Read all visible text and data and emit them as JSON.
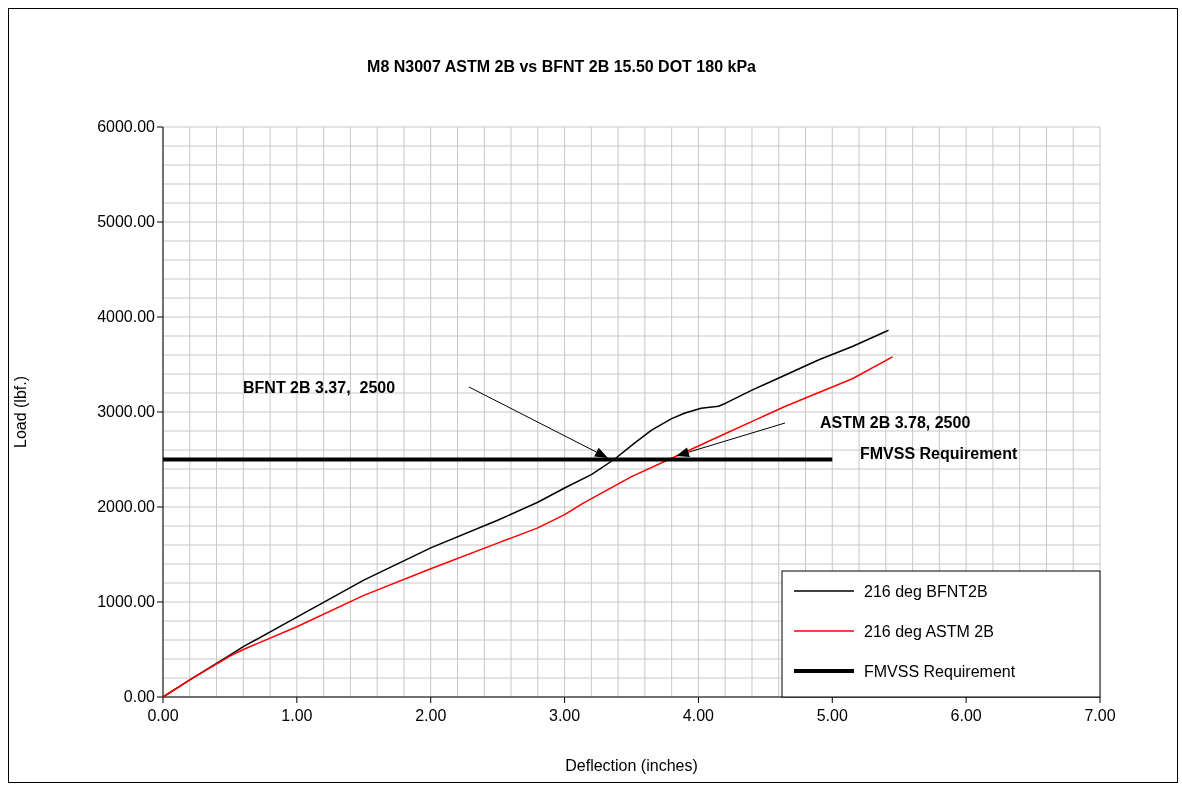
{
  "chart_data": {
    "type": "line",
    "title": "M8 N3007 ASTM 2B vs BFNT 2B 15.50 DOT 180 kPa",
    "xlabel": "Deflection (inches)",
    "ylabel": "Load (lbf.)",
    "xlim": [
      0,
      7
    ],
    "ylim": [
      0,
      6000
    ],
    "xticks": [
      {
        "value": 0,
        "label": "0.00"
      },
      {
        "value": 0.2,
        "label": null
      },
      {
        "value": 0.4,
        "label": null
      },
      {
        "value": 0.6,
        "label": null
      },
      {
        "value": 0.8,
        "label": null
      },
      {
        "value": 1,
        "label": "1.00"
      },
      {
        "value": 1.2,
        "label": null
      },
      {
        "value": 1.4,
        "label": null
      },
      {
        "value": 1.6,
        "label": null
      },
      {
        "value": 1.8,
        "label": null
      },
      {
        "value": 2,
        "label": "2.00"
      },
      {
        "value": 2.2,
        "label": null
      },
      {
        "value": 2.4,
        "label": null
      },
      {
        "value": 2.6,
        "label": null
      },
      {
        "value": 2.8,
        "label": null
      },
      {
        "value": 3,
        "label": "3.00"
      },
      {
        "value": 3.2,
        "label": null
      },
      {
        "value": 3.4,
        "label": null
      },
      {
        "value": 3.6,
        "label": null
      },
      {
        "value": 3.8,
        "label": null
      },
      {
        "value": 4,
        "label": "4.00"
      },
      {
        "value": 4.2,
        "label": null
      },
      {
        "value": 4.4,
        "label": null
      },
      {
        "value": 4.6,
        "label": null
      },
      {
        "value": 4.8,
        "label": null
      },
      {
        "value": 5,
        "label": "5.00"
      },
      {
        "value": 5.2,
        "label": null
      },
      {
        "value": 5.4,
        "label": null
      },
      {
        "value": 5.6,
        "label": null
      },
      {
        "value": 5.8,
        "label": null
      },
      {
        "value": 6,
        "label": "6.00"
      },
      {
        "value": 6.2,
        "label": null
      },
      {
        "value": 6.4,
        "label": null
      },
      {
        "value": 6.6,
        "label": null
      },
      {
        "value": 6.8,
        "label": null
      },
      {
        "value": 7,
        "label": "7.00"
      }
    ],
    "yticks": [
      {
        "value": 0,
        "label": "0.00"
      },
      {
        "value": 200,
        "label": null
      },
      {
        "value": 400,
        "label": null
      },
      {
        "value": 600,
        "label": null
      },
      {
        "value": 800,
        "label": null
      },
      {
        "value": 1000,
        "label": "1000.00"
      },
      {
        "value": 1200,
        "label": null
      },
      {
        "value": 1400,
        "label": null
      },
      {
        "value": 1600,
        "label": null
      },
      {
        "value": 1800,
        "label": null
      },
      {
        "value": 2000,
        "label": "2000.00"
      },
      {
        "value": 2200,
        "label": null
      },
      {
        "value": 2400,
        "label": null
      },
      {
        "value": 2600,
        "label": null
      },
      {
        "value": 2800,
        "label": null
      },
      {
        "value": 3000,
        "label": "3000.00"
      },
      {
        "value": 3200,
        "label": null
      },
      {
        "value": 3400,
        "label": null
      },
      {
        "value": 3600,
        "label": null
      },
      {
        "value": 3800,
        "label": null
      },
      {
        "value": 4000,
        "label": "4000.00"
      },
      {
        "value": 4200,
        "label": null
      },
      {
        "value": 4400,
        "label": null
      },
      {
        "value": 4600,
        "label": null
      },
      {
        "value": 4800,
        "label": null
      },
      {
        "value": 5000,
        "label": "5000.00"
      },
      {
        "value": 5200,
        "label": null
      },
      {
        "value": 5400,
        "label": null
      },
      {
        "value": 5600,
        "label": null
      },
      {
        "value": 5800,
        "label": null
      },
      {
        "value": 6000,
        "label": "6000.00"
      }
    ],
    "grid": true,
    "legend": "bottom right",
    "marker": "none",
    "line_style": "solid",
    "series": [
      {
        "name": "216 deg BFNT2B",
        "color": "#000000",
        "x": [
          0,
          0.2,
          0.5,
          0.6,
          1,
          1.5,
          2,
          2.5,
          2.8,
          3,
          3.2,
          3.37,
          3.52,
          3.65,
          3.8,
          3.9,
          4.02,
          4.15,
          4.2,
          4.4,
          4.65,
          4.9,
          5.15,
          5.42
        ],
        "values": [
          0,
          180,
          440,
          530,
          840,
          1230,
          1570,
          1860,
          2050,
          2200,
          2340,
          2500,
          2670,
          2810,
          2930,
          2990,
          3040,
          3060,
          3090,
          3230,
          3390,
          3550,
          3690,
          3860
        ]
      },
      {
        "name": "216 deg ASTM 2B",
        "color": "#ff0000",
        "x": [
          0,
          0.2,
          0.5,
          0.6,
          1,
          1.5,
          2,
          2.5,
          2.8,
          3,
          3.14,
          3.5,
          3.78,
          4.15,
          4.65,
          5.15,
          5.45
        ],
        "values": [
          0,
          180,
          430,
          500,
          740,
          1070,
          1350,
          1620,
          1780,
          1920,
          2040,
          2320,
          2500,
          2740,
          3060,
          3350,
          3580
        ]
      },
      {
        "name": "FMVSS Requirement",
        "color": "#000000",
        "x": [
          0,
          5
        ],
        "values": [
          2500,
          2500
        ]
      }
    ],
    "annotations": [
      "BFNT 2B 3.37,  2500",
      "ASTM 2B 3.78, 2500",
      "FMVSS Requirement"
    ]
  }
}
